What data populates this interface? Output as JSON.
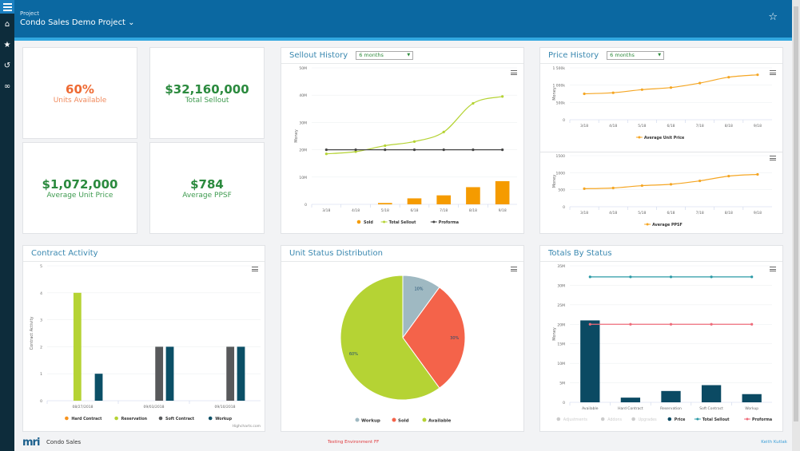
{
  "header": {
    "label": "Project",
    "title": "Condo Sales Demo Project",
    "title_icon": "chevron-down-icon",
    "favorite_icon": "star-outline-icon"
  },
  "sidebar": {
    "items": [
      {
        "icon": "menu-icon"
      },
      {
        "icon": "home-icon"
      },
      {
        "icon": "star-icon"
      },
      {
        "icon": "history-icon"
      },
      {
        "icon": "link-icon"
      }
    ]
  },
  "kpis": [
    {
      "value": "60%",
      "label": "Units Available",
      "color": "#ee6a33"
    },
    {
      "value": "$32,160,000",
      "label": "Total Sellout",
      "color": "#2b8a3e"
    },
    {
      "value": "$1,072,000",
      "label": "Average Unit Price",
      "color": "#2b8a3e"
    },
    {
      "value": "$784",
      "label": "Average PPSF",
      "color": "#2b8a3e"
    }
  ],
  "panels": {
    "sellout": {
      "title": "Sellout History",
      "range": "6 months"
    },
    "price": {
      "title": "Price History",
      "range": "6 months"
    },
    "contract": {
      "title": "Contract Activity",
      "credit": "Highcharts.com"
    },
    "unit_status": {
      "title": "Unit Status Distribution"
    },
    "totals": {
      "title": "Totals By Status"
    }
  },
  "chart_data": [
    {
      "id": "sellout",
      "type": "bar+line",
      "categories": [
        "3/18",
        "4/18",
        "5/18",
        "6/18",
        "7/18",
        "8/18",
        "9/18"
      ],
      "ylabel": "Money",
      "ylim": [
        0,
        50000000
      ],
      "yticks": [
        "0",
        "10M",
        "20M",
        "30M",
        "40M",
        "50M"
      ],
      "legend": "bottom",
      "series": [
        {
          "name": "Sold",
          "kind": "bar",
          "color": "#f59b00",
          "values": [
            0,
            0,
            500000,
            2200000,
            3300000,
            6300000,
            8500000
          ]
        },
        {
          "name": "Total Sellout",
          "kind": "spline",
          "color": "#b5d334",
          "values": [
            18500000,
            19300000,
            21500000,
            23000000,
            26500000,
            37000000,
            39500000
          ]
        },
        {
          "name": "Proforma",
          "kind": "line",
          "color": "#444444",
          "values": [
            20000000,
            20000000,
            20000000,
            20000000,
            20000000,
            20000000,
            20000000
          ]
        }
      ]
    },
    {
      "id": "price_unit",
      "type": "line",
      "categories": [
        "3/18",
        "4/18",
        "5/18",
        "6/18",
        "7/18",
        "8/18",
        "9/18"
      ],
      "ylabel": "Money",
      "ylim": [
        0,
        1500000
      ],
      "yticks": [
        "0",
        "500k",
        "1 000k",
        "1 500k"
      ],
      "legend": "bottom",
      "series": [
        {
          "name": "Average Unit Price",
          "kind": "spline",
          "color": "#f5a623",
          "values": [
            750000,
            780000,
            870000,
            930000,
            1060000,
            1230000,
            1300000
          ]
        }
      ]
    },
    {
      "id": "price_ppsf",
      "type": "line",
      "categories": [
        "3/18",
        "4/18",
        "5/18",
        "6/18",
        "7/18",
        "8/18",
        "9/18"
      ],
      "ylabel": "Money",
      "ylim": [
        0,
        1500
      ],
      "yticks": [
        "0",
        "500",
        "1000",
        "1500"
      ],
      "legend": "bottom",
      "series": [
        {
          "name": "Average PPSF",
          "kind": "spline",
          "color": "#f5a623",
          "values": [
            530,
            550,
            620,
            660,
            760,
            900,
            950
          ]
        }
      ]
    },
    {
      "id": "contract",
      "type": "bar",
      "categories": [
        "08/27/2018",
        "09/03/2018",
        "09/10/2018"
      ],
      "ylabel": "Contract Activity",
      "ylim": [
        0,
        5
      ],
      "yticks": [
        "0",
        "1",
        "2",
        "3",
        "4",
        "5"
      ],
      "legend": "bottom",
      "series": [
        {
          "name": "Hard Contract",
          "kind": "group",
          "color": "#f7931e",
          "values": [
            0,
            0,
            0
          ]
        },
        {
          "name": "Reservation",
          "kind": "group",
          "color": "#b5d334",
          "values": [
            4,
            0,
            0
          ]
        },
        {
          "name": "Soft Contract",
          "kind": "group",
          "color": "#58595b",
          "values": [
            0,
            2,
            2
          ]
        },
        {
          "name": "Workup",
          "kind": "group",
          "color": "#0b4f66",
          "values": [
            1,
            2,
            2
          ]
        }
      ]
    },
    {
      "id": "unit_status",
      "type": "pie",
      "legend": "bottom",
      "slices": [
        {
          "name": "Workup",
          "value": 10,
          "label": "10%",
          "color": "#9fb9c2"
        },
        {
          "name": "Sold",
          "value": 30,
          "label": "30%",
          "color": "#f4634a"
        },
        {
          "name": "Available",
          "value": 60,
          "label": "60%",
          "color": "#b5d334"
        }
      ]
    },
    {
      "id": "totals",
      "type": "bar+line",
      "categories": [
        "Available",
        "Hard Contract",
        "Reservation",
        "Soft Contract",
        "Workup"
      ],
      "ylabel": "Money",
      "ylim": [
        0,
        35000000
      ],
      "yticks": [
        "0",
        "5M",
        "10M",
        "15M",
        "20M",
        "25M",
        "30M",
        "35M"
      ],
      "legend": "bottom",
      "hidden_series": [
        {
          "name": "Adjustments"
        },
        {
          "name": "Addons"
        },
        {
          "name": "Upgrades"
        }
      ],
      "series": [
        {
          "name": "Price",
          "kind": "bar",
          "color": "#0b4a63",
          "values": [
            21000000,
            1200000,
            2900000,
            4400000,
            2100000
          ]
        },
        {
          "name": "Total Sellout",
          "kind": "line",
          "color": "#2a9aa6",
          "values": [
            32160000,
            32160000,
            32160000,
            32160000,
            32160000
          ]
        },
        {
          "name": "Proforma",
          "kind": "line",
          "color": "#ee6b7a",
          "values": [
            20000000,
            20000000,
            20000000,
            20000000,
            20000000
          ]
        }
      ]
    }
  ],
  "footer": {
    "logo": "mri",
    "app": "Condo Sales",
    "environment": "Testing Environment FF",
    "user": "Keith Kutlak"
  }
}
